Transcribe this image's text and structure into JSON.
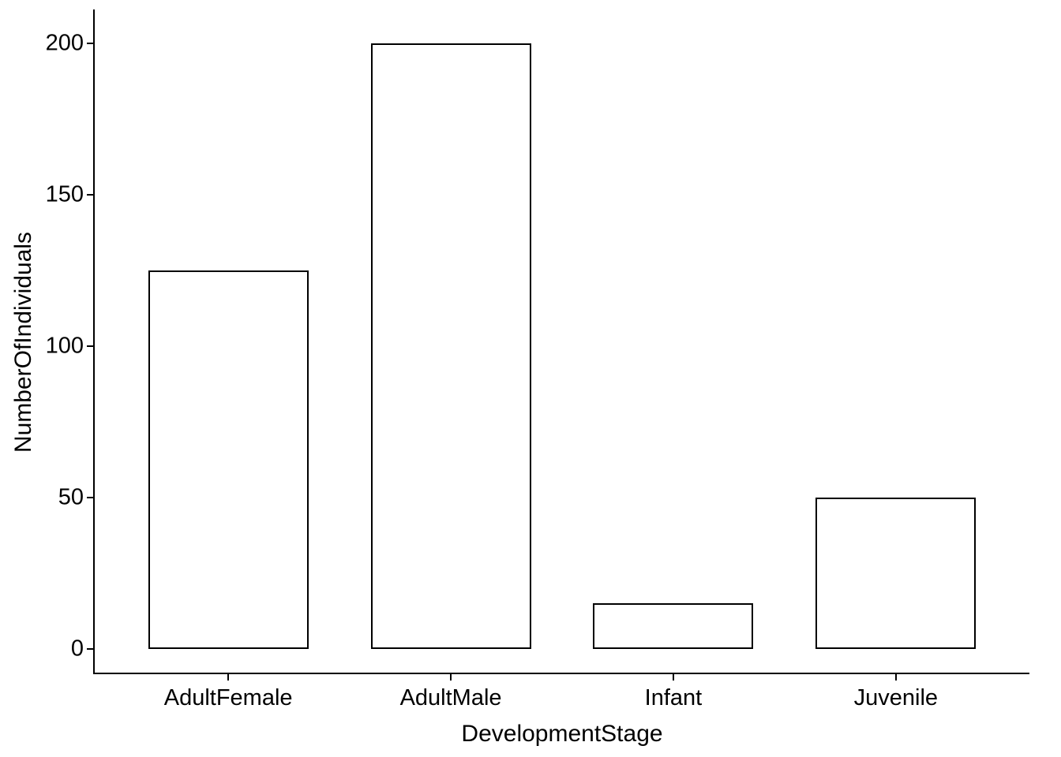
{
  "chart_data": {
    "type": "bar",
    "categories": [
      "AdultFemale",
      "AdultMale",
      "Infant",
      "Juvenile"
    ],
    "values": [
      125,
      200,
      15,
      50
    ],
    "title": "",
    "xlabel": "DevelopmentStage",
    "ylabel": "NumberOfIndividuals",
    "ylim": [
      0,
      200
    ],
    "yticks": [
      0,
      50,
      100,
      150,
      200
    ],
    "bar_fill": "#ffffff",
    "bar_border": "#000000",
    "background": "#ffffff",
    "grid": false,
    "legend": false
  }
}
